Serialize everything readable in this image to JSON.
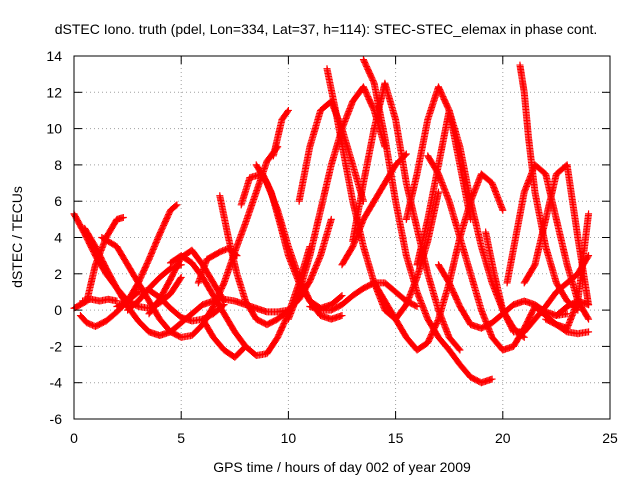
{
  "chart_data": {
    "type": "scatter",
    "title": "dSTEC Iono. truth (pdel, Lon=334, Lat=37, h=114): STEC-STEC_elemax in phase cont.",
    "xlabel": "GPS time / hours of day 002 of year 2009",
    "ylabel": "dSTEC  / TECUs",
    "xlim": [
      0,
      25
    ],
    "ylim": [
      -6,
      14
    ],
    "xticks": [
      0,
      5,
      10,
      15,
      20,
      25
    ],
    "yticks": [
      -6,
      -4,
      -2,
      0,
      2,
      4,
      6,
      8,
      10,
      12,
      14
    ],
    "xtick_labels": [
      "0",
      "5",
      "10",
      "15",
      "20",
      "25"
    ],
    "ytick_labels": [
      "-6",
      "-4",
      "-2",
      "0",
      "2",
      "4",
      "6",
      "8",
      "10",
      "12",
      "14"
    ],
    "grid": true,
    "marker": "+",
    "color": "#ff0000",
    "series": [
      {
        "x": [
          0,
          0.5,
          1,
          1.5,
          2,
          2.5,
          3,
          3.5,
          4,
          4.5,
          5
        ],
        "y": [
          5.3,
          4.2,
          3.0,
          2.0,
          1.2,
          0.5,
          0.2,
          0.1,
          0.4,
          0.9,
          1.8
        ]
      },
      {
        "x": [
          0,
          0.3,
          0.6,
          1,
          1.5,
          2,
          2.3
        ],
        "y": [
          0.1,
          0.3,
          0.5,
          2.5,
          4.0,
          5.0,
          5.1
        ]
      },
      {
        "x": [
          0.3,
          0.6,
          1,
          1.5,
          2,
          2.5,
          3,
          3.5,
          4,
          4.5,
          5,
          5.5,
          6,
          6.5,
          7
        ],
        "y": [
          -0.3,
          -0.7,
          -0.9,
          -0.6,
          -0.1,
          0.5,
          1.0,
          1.1,
          0.7,
          0.1,
          -0.4,
          -0.6,
          -0.5,
          -0.2,
          0.3
        ]
      },
      {
        "x": [
          0.4,
          0.8,
          1.2,
          1.6,
          2.0
        ],
        "y": [
          0.5,
          0.6,
          0.5,
          0.6,
          0.5
        ]
      },
      {
        "x": [
          0.5,
          1,
          1.5,
          2,
          2.5,
          3,
          3.5,
          4,
          4.5,
          5,
          5.5,
          6,
          6.5,
          7,
          7.5,
          8,
          8.5,
          9,
          9.5,
          10
        ],
        "y": [
          4.5,
          3.5,
          2.3,
          1.2,
          0.2,
          -0.6,
          -1.2,
          -1.4,
          -1.2,
          -0.7,
          -0.2,
          0.3,
          0.5,
          0.6,
          0.5,
          0.3,
          0.1,
          -0.1,
          -0.1,
          0.0
        ]
      },
      {
        "x": [
          1.3,
          2,
          2.5,
          3,
          3.5,
          4,
          4.5,
          5,
          5.5,
          6,
          6.5,
          7,
          7.5,
          8,
          8.5,
          9,
          9.5
        ],
        "y": [
          4.0,
          3.5,
          2.5,
          1.5,
          0.5,
          -0.5,
          -1.2,
          -1.5,
          -1.4,
          -0.8,
          0.2,
          1.5,
          3.2,
          4.8,
          6.5,
          8.2,
          9.0
        ]
      },
      {
        "x": [
          2,
          2.5,
          3,
          3.5,
          4,
          4.5,
          4.8
        ],
        "y": [
          0.2,
          0.5,
          1.5,
          2.8,
          4.2,
          5.5,
          5.8
        ]
      },
      {
        "x": [
          2.5,
          3,
          3.5,
          4,
          4.5,
          5
        ],
        "y": [
          0.0,
          0.5,
          1.2,
          1.8,
          2.3,
          2.5
        ]
      },
      {
        "x": [
          3.5,
          4,
          4.5,
          5,
          5.5,
          6,
          6.5,
          7
        ],
        "y": [
          -0.2,
          0.6,
          1.7,
          2.9,
          3.3,
          2.5,
          1.5,
          0.5
        ]
      },
      {
        "x": [
          4.5,
          5,
          5.5,
          6,
          6.5,
          7,
          7.5,
          8,
          8.5,
          9,
          9.5,
          10,
          10.5,
          11
        ],
        "y": [
          2.6,
          3.0,
          2.6,
          1.8,
          0.8,
          -0.2,
          -1.2,
          -2.0,
          -2.5,
          -2.4,
          -1.5,
          -0.2,
          1.5,
          3.5
        ]
      },
      {
        "x": [
          6,
          6.5,
          7,
          7.5,
          8
        ],
        "y": [
          -0.5,
          -1.5,
          -2.2,
          -2.6,
          -2.0
        ]
      },
      {
        "x": [
          5.8,
          6.2,
          6.8,
          7.2,
          7.6
        ],
        "y": [
          1.5,
          2.8,
          3.2,
          3.4,
          3.0
        ]
      },
      {
        "x": [
          6.8,
          7.2,
          7.6,
          8,
          8.5,
          9,
          9.5,
          10,
          10.5,
          11,
          11.5,
          12
        ],
        "y": [
          6.3,
          4.0,
          2.0,
          0.5,
          -0.5,
          -0.8,
          -0.5,
          0.0,
          0.6,
          1.6,
          3.0,
          5.0
        ]
      },
      {
        "x": [
          7.8,
          8.2,
          8.8,
          9.2,
          9.6,
          10,
          10.5,
          11,
          11.5,
          12,
          12.5
        ],
        "y": [
          5.8,
          7.3,
          7.5,
          6.5,
          4.8,
          3.0,
          1.5,
          0.5,
          -0.3,
          -0.5,
          -0.3
        ]
      },
      {
        "x": [
          8.5,
          9,
          9.5,
          10,
          10.5,
          11,
          11.5,
          12,
          12.5
        ],
        "y": [
          8.0,
          7.0,
          5.5,
          3.5,
          1.8,
          0.5,
          0.1,
          0.3,
          0.8
        ]
      },
      {
        "x": [
          9.3,
          9.5,
          9.7,
          10.0
        ],
        "y": [
          8.5,
          9.5,
          10.5,
          11.0
        ]
      },
      {
        "x": [
          10.5,
          11,
          11.5,
          12,
          12.5,
          13,
          13.5
        ],
        "y": [
          6.0,
          9.0,
          11.0,
          11.5,
          10.0,
          8.0,
          6.0
        ]
      },
      {
        "x": [
          10,
          10.5,
          11,
          11.5,
          12,
          12.5,
          13,
          13.5,
          14,
          14.5
        ],
        "y": [
          -0.5,
          1.0,
          3.0,
          5.5,
          8.0,
          10.0,
          11.5,
          12.3,
          11.0,
          9.0
        ]
      },
      {
        "x": [
          11,
          11.5,
          12,
          12.5,
          13,
          13.5,
          14,
          14.5,
          15,
          15.5,
          16
        ],
        "y": [
          0.2,
          0.0,
          0.0,
          0.3,
          0.8,
          1.2,
          1.5,
          1.5,
          1.0,
          0.5,
          0.2
        ]
      },
      {
        "x": [
          11.8,
          12.2,
          12.6,
          13,
          13.5,
          14,
          14.5,
          15,
          15.5,
          16,
          16.5,
          17
        ],
        "y": [
          13.3,
          11.0,
          8.5,
          6.0,
          3.5,
          1.5,
          0.0,
          -0.5,
          0.3,
          1.8,
          3.8,
          6.5
        ]
      },
      {
        "x": [
          13,
          13.5,
          14,
          14.5,
          15,
          15.5,
          16,
          16.5,
          17,
          17.5,
          18
        ],
        "y": [
          3.8,
          7.0,
          10.0,
          12.5,
          10.5,
          7.0,
          4.5,
          2.0,
          0.0,
          -1.5,
          -2.2
        ]
      },
      {
        "x": [
          13.5,
          14,
          14.5,
          15,
          15.5,
          16,
          16.5,
          17,
          17.5,
          18,
          18.5,
          19,
          19.5
        ],
        "y": [
          13.8,
          12.5,
          9.5,
          6.0,
          3.0,
          1.0,
          -0.5,
          -1.5,
          -2.2,
          -3.0,
          -3.7,
          -4.0,
          -3.8
        ]
      },
      {
        "x": [
          14,
          14.5,
          15,
          15.5,
          16,
          16.5,
          17,
          17.5,
          18,
          18.5,
          19,
          19.5,
          20
        ],
        "y": [
          1.5,
          0.5,
          -0.5,
          -1.5,
          -2.2,
          -1.8,
          -0.5,
          1.5,
          4.0,
          6.0,
          7.5,
          7.0,
          5.5
        ]
      },
      {
        "x": [
          12.5,
          13,
          13.5,
          14,
          14.5,
          15,
          15.5
        ],
        "y": [
          2.5,
          3.5,
          5.0,
          6.0,
          7.0,
          8.0,
          8.6
        ]
      },
      {
        "x": [
          15.5,
          16,
          16.5,
          17,
          17.5,
          18,
          18.5
        ],
        "y": [
          5.0,
          7.5,
          10.5,
          12.3,
          11.0,
          8.0,
          5.0
        ]
      },
      {
        "x": [
          16,
          16.5,
          17,
          17.5,
          18,
          18.5,
          19,
          19.5,
          20,
          20.5,
          21
        ],
        "y": [
          2.5,
          5.0,
          8.0,
          11.0,
          9.0,
          6.0,
          3.5,
          1.5,
          0.0,
          -1.0,
          -1.5
        ]
      },
      {
        "x": [
          16.5,
          17,
          17.5,
          18,
          18.5,
          19,
          19.5,
          20,
          20.5,
          21,
          21.5
        ],
        "y": [
          8.5,
          7.5,
          6.0,
          4.0,
          2.0,
          0.0,
          -1.5,
          -2.2,
          -2.0,
          -1.0,
          0.2
        ]
      },
      {
        "x": [
          17,
          17.5,
          18,
          18.5,
          19,
          19.5,
          20,
          20.5,
          21,
          21.5,
          22,
          22.5,
          23
        ],
        "y": [
          2.5,
          1.5,
          0.2,
          -0.8,
          -1.0,
          -0.7,
          -0.2,
          0.3,
          0.5,
          0.3,
          -0.1,
          -0.3,
          -0.2
        ]
      },
      {
        "x": [
          19.2,
          19.6,
          20,
          20.5,
          21,
          21.5,
          22,
          22.5,
          23,
          23.5,
          24
        ],
        "y": [
          4.3,
          2.0,
          0.0,
          -1.2,
          -1.2,
          -0.5,
          0.2,
          1.0,
          1.5,
          2.0,
          3.0
        ]
      },
      {
        "x": [
          20.2,
          20.6,
          21,
          21.5,
          22,
          22.5,
          23,
          23.5,
          24
        ],
        "y": [
          1.5,
          4.0,
          6.5,
          8.0,
          7.5,
          5.0,
          2.5,
          0.5,
          -0.5
        ]
      },
      {
        "x": [
          20.8,
          21,
          21.2,
          21.5,
          22,
          22.5,
          23,
          23.5
        ],
        "y": [
          13.5,
          12.0,
          9.5,
          6.5,
          3.5,
          1.5,
          0.5,
          0.0
        ]
      },
      {
        "x": [
          21,
          21.5,
          22,
          22.5,
          23,
          23.5,
          24
        ],
        "y": [
          1.5,
          2.5,
          5.0,
          7.5,
          8.0,
          4.0,
          0.3
        ]
      },
      {
        "x": [
          21.5,
          22,
          22.5,
          23,
          23.5,
          24
        ],
        "y": [
          0.2,
          -0.3,
          -0.8,
          -1.2,
          -1.3,
          -1.2
        ]
      },
      {
        "x": [
          22,
          22.5,
          23,
          23.5,
          24
        ],
        "y": [
          -0.5,
          -0.8,
          -1.0,
          0.5,
          5.3
        ]
      },
      {
        "x": [
          22.5,
          23,
          23.5,
          24
        ],
        "y": [
          -0.3,
          0.2,
          0.5,
          0.3
        ]
      }
    ]
  }
}
